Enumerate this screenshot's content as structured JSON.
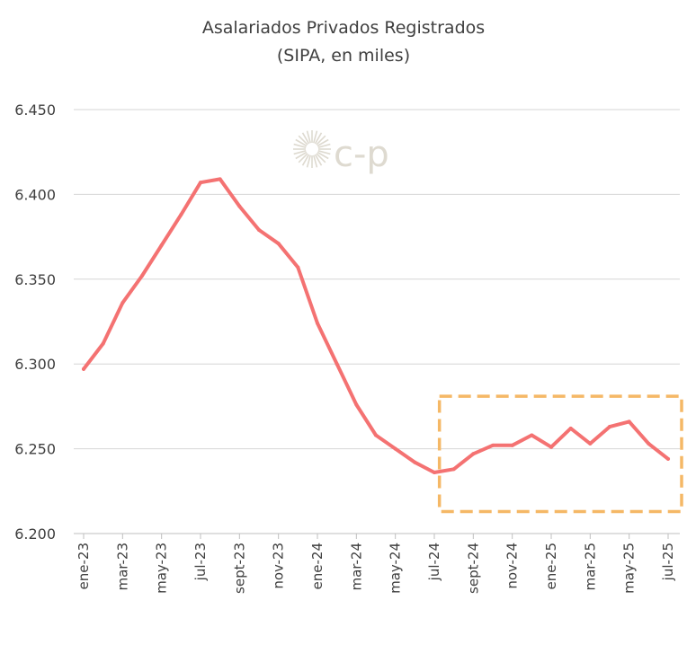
{
  "chart_data": {
    "type": "line",
    "title": "Asalariados Privados Registrados",
    "subtitle": "(SIPA, en miles)",
    "xlabel": "",
    "ylabel": "",
    "ylim": [
      6200,
      6450
    ],
    "yticks": [
      6200,
      6250,
      6300,
      6350,
      6400,
      6450
    ],
    "ytick_labels": [
      "6.200",
      "6.250",
      "6.300",
      "6.350",
      "6.400",
      "6.450"
    ],
    "x": [
      "ene-23",
      "feb-23",
      "mar-23",
      "abr-23",
      "may-23",
      "jun-23",
      "jul-23",
      "ago-23",
      "sept-23",
      "oct-23",
      "nov-23",
      "dic-23",
      "ene-24",
      "feb-24",
      "mar-24",
      "abr-24",
      "may-24",
      "jun-24",
      "jul-24",
      "ago-24",
      "sept-24",
      "oct-24",
      "nov-24",
      "dic-24",
      "ene-25",
      "feb-25",
      "mar-25",
      "abr-25",
      "may-25",
      "jun-25",
      "jul-25"
    ],
    "xtick_labels": [
      "ene-23",
      "mar-23",
      "may-23",
      "jul-23",
      "sept-23",
      "nov-23",
      "ene-24",
      "mar-24",
      "may-24",
      "jul-24",
      "sept-24",
      "nov-24",
      "ene-25",
      "mar-25",
      "may-25",
      "jul-25"
    ],
    "series": [
      {
        "name": "Asalariados Privados Registrados",
        "color": "#f47272",
        "values": [
          6297,
          6312,
          6336,
          6352,
          6370,
          6388,
          6407,
          6409,
          6393,
          6379,
          6371,
          6357,
          6324,
          6300,
          6276,
          6258,
          6250,
          6242,
          6236,
          6238,
          6247,
          6252,
          6252,
          6258,
          6251,
          6262,
          6253,
          6263,
          6266,
          6253,
          6244
        ]
      }
    ],
    "highlight": {
      "from": "ago-24",
      "to": "jul-25",
      "color": "#f5b866",
      "style": "dashed"
    },
    "grid": true,
    "legend": "none"
  },
  "watermark": {
    "text": "c-p"
  }
}
